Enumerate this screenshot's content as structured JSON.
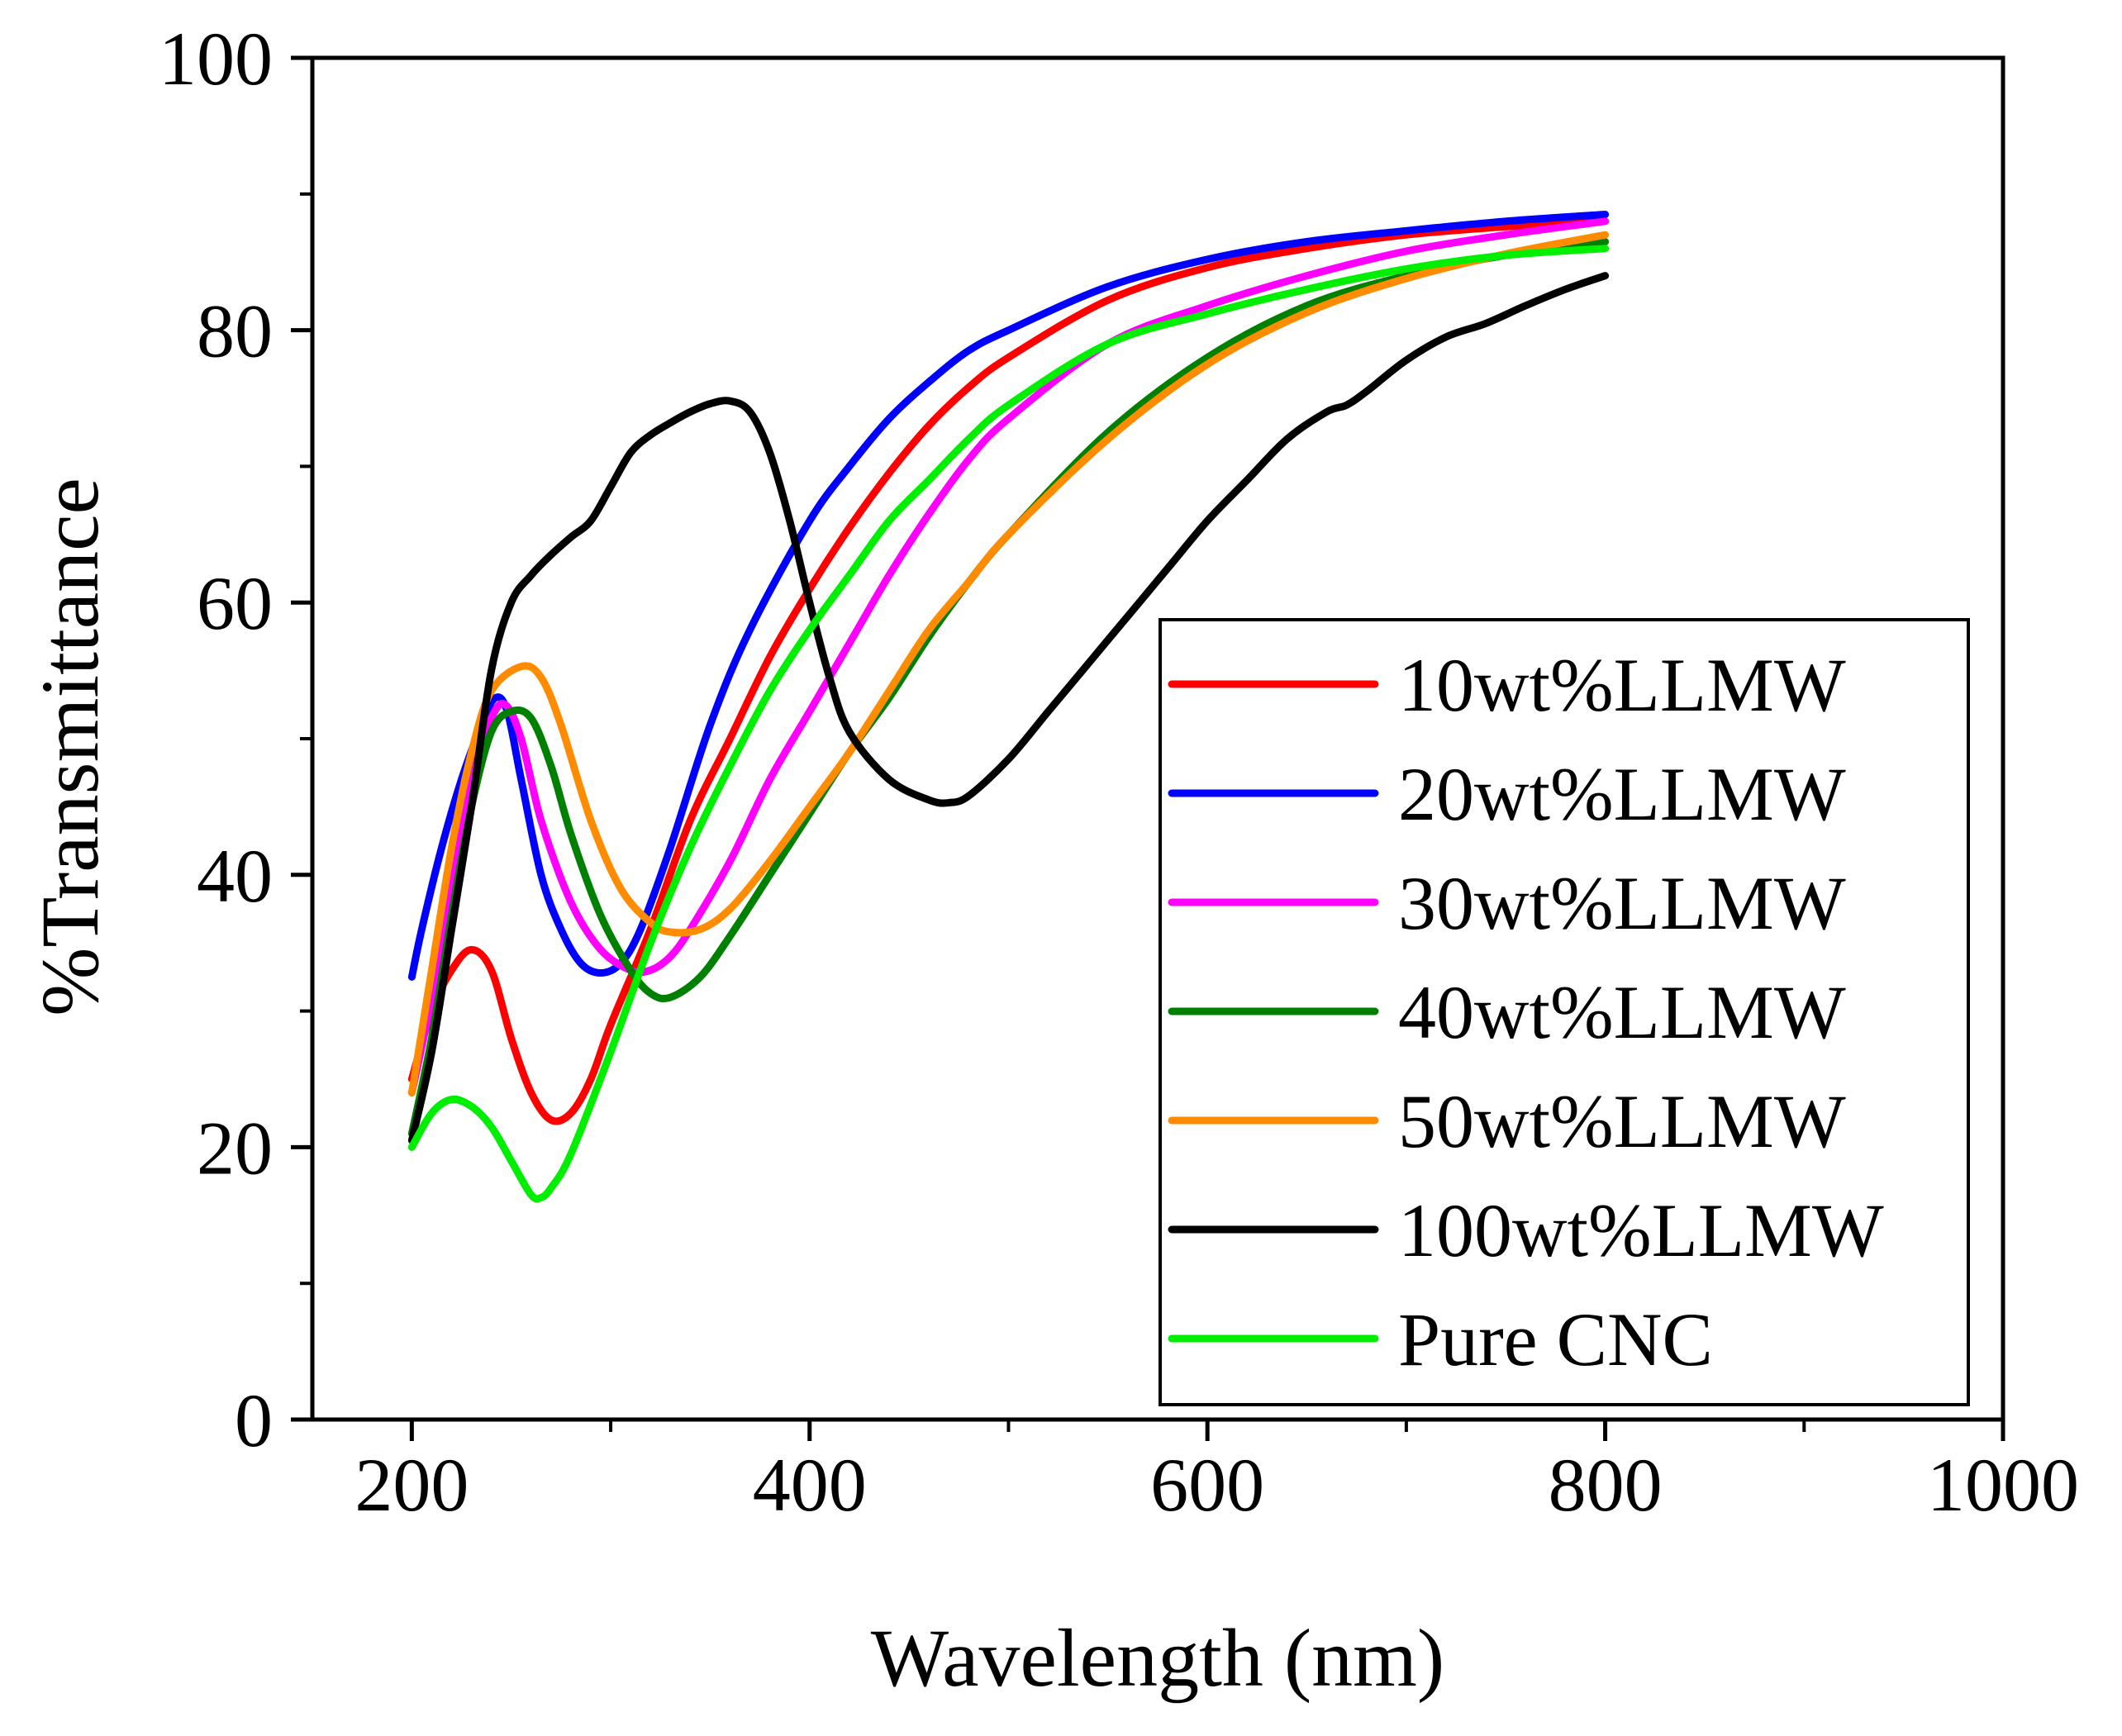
{
  "chart_data": {
    "type": "line",
    "title": "",
    "xlabel": "Wavelength (nm)",
    "ylabel": "%Transmittance",
    "xlim": [
      150,
      1000
    ],
    "ylim": [
      0,
      100
    ],
    "xticks": [
      200,
      400,
      600,
      800,
      1000
    ],
    "yticks": [
      0,
      20,
      40,
      60,
      80,
      100
    ],
    "x_minor_step": 100,
    "y_minor_step": 10,
    "grid": false,
    "legend_position": "bottom-right",
    "series": [
      {
        "name": "10wt%LLMW",
        "color": "#ff0000",
        "points": [
          [
            200,
            25
          ],
          [
            210,
            30
          ],
          [
            220,
            33
          ],
          [
            230,
            34.5
          ],
          [
            240,
            33
          ],
          [
            250,
            28
          ],
          [
            260,
            24
          ],
          [
            270,
            22
          ],
          [
            280,
            22.5
          ],
          [
            290,
            25
          ],
          [
            300,
            29
          ],
          [
            320,
            36
          ],
          [
            340,
            44
          ],
          [
            360,
            50
          ],
          [
            380,
            56
          ],
          [
            400,
            61
          ],
          [
            420,
            65.5
          ],
          [
            440,
            69.5
          ],
          [
            460,
            73
          ],
          [
            480,
            75.8
          ],
          [
            500,
            78
          ],
          [
            550,
            82.2
          ],
          [
            600,
            84.6
          ],
          [
            650,
            86
          ],
          [
            700,
            87
          ],
          [
            750,
            87.6
          ],
          [
            800,
            88
          ]
        ]
      },
      {
        "name": "20wt%LLMW",
        "color": "#0000ff",
        "points": [
          [
            200,
            32.5
          ],
          [
            205,
            36
          ],
          [
            215,
            42
          ],
          [
            225,
            47
          ],
          [
            235,
            51
          ],
          [
            242,
            53
          ],
          [
            248,
            52
          ],
          [
            255,
            47
          ],
          [
            265,
            40
          ],
          [
            275,
            36
          ],
          [
            285,
            33.5
          ],
          [
            295,
            32.8
          ],
          [
            305,
            33.5
          ],
          [
            315,
            36
          ],
          [
            330,
            42
          ],
          [
            350,
            51
          ],
          [
            370,
            58
          ],
          [
            400,
            66
          ],
          [
            420,
            70
          ],
          [
            440,
            73.5
          ],
          [
            460,
            76.2
          ],
          [
            480,
            78.5
          ],
          [
            500,
            80
          ],
          [
            550,
            83.2
          ],
          [
            600,
            85.2
          ],
          [
            650,
            86.5
          ],
          [
            700,
            87.3
          ],
          [
            750,
            88
          ],
          [
            800,
            88.5
          ]
        ]
      },
      {
        "name": "30wt%LLMW",
        "color": "#ff00ff",
        "points": [
          [
            200,
            24
          ],
          [
            210,
            31
          ],
          [
            220,
            40
          ],
          [
            230,
            47
          ],
          [
            240,
            51.5
          ],
          [
            247,
            52.5
          ],
          [
            255,
            50
          ],
          [
            265,
            44
          ],
          [
            280,
            38
          ],
          [
            295,
            34.5
          ],
          [
            310,
            33
          ],
          [
            320,
            33
          ],
          [
            330,
            34
          ],
          [
            340,
            36
          ],
          [
            360,
            41
          ],
          [
            380,
            47
          ],
          [
            400,
            52
          ],
          [
            420,
            57
          ],
          [
            440,
            62
          ],
          [
            460,
            66.5
          ],
          [
            480,
            70.5
          ],
          [
            500,
            73.5
          ],
          [
            550,
            79
          ],
          [
            600,
            81.8
          ],
          [
            650,
            84
          ],
          [
            700,
            85.8
          ],
          [
            750,
            87
          ],
          [
            800,
            88
          ]
        ]
      },
      {
        "name": "40wt%LLMW",
        "color": "#008000",
        "points": [
          [
            200,
            21
          ],
          [
            210,
            28
          ],
          [
            220,
            37
          ],
          [
            230,
            45
          ],
          [
            240,
            50.5
          ],
          [
            250,
            52
          ],
          [
            260,
            51.5
          ],
          [
            270,
            48
          ],
          [
            280,
            43
          ],
          [
            295,
            37
          ],
          [
            310,
            33
          ],
          [
            320,
            31.3
          ],
          [
            330,
            31
          ],
          [
            345,
            32.5
          ],
          [
            360,
            35.5
          ],
          [
            380,
            40
          ],
          [
            400,
            44.5
          ],
          [
            420,
            49
          ],
          [
            440,
            53
          ],
          [
            460,
            57.5
          ],
          [
            480,
            61.5
          ],
          [
            500,
            65
          ],
          [
            550,
            72.5
          ],
          [
            600,
            78
          ],
          [
            650,
            81.8
          ],
          [
            700,
            84
          ],
          [
            750,
            85.5
          ],
          [
            800,
            86.5
          ]
        ]
      },
      {
        "name": "50wt%LLMW",
        "color": "#ff8c00",
        "points": [
          [
            200,
            24
          ],
          [
            210,
            33
          ],
          [
            220,
            42
          ],
          [
            230,
            49
          ],
          [
            240,
            53.5
          ],
          [
            255,
            55.3
          ],
          [
            265,
            54.5
          ],
          [
            275,
            51
          ],
          [
            290,
            44
          ],
          [
            305,
            39
          ],
          [
            320,
            36.5
          ],
          [
            330,
            35.8
          ],
          [
            345,
            36
          ],
          [
            360,
            37.5
          ],
          [
            380,
            41
          ],
          [
            400,
            45
          ],
          [
            420,
            49
          ],
          [
            440,
            53.5
          ],
          [
            460,
            58
          ],
          [
            480,
            61.5
          ],
          [
            500,
            65
          ],
          [
            550,
            72
          ],
          [
            600,
            77.5
          ],
          [
            650,
            81.3
          ],
          [
            700,
            83.8
          ],
          [
            750,
            85.6
          ],
          [
            800,
            87
          ]
        ]
      },
      {
        "name": "100wt%LLMW",
        "color": "#000000",
        "points": [
          [
            200,
            20.5
          ],
          [
            210,
            27
          ],
          [
            220,
            36
          ],
          [
            230,
            45
          ],
          [
            240,
            55
          ],
          [
            250,
            60
          ],
          [
            260,
            62
          ],
          [
            270,
            63.5
          ],
          [
            280,
            64.8
          ],
          [
            290,
            66
          ],
          [
            300,
            68.5
          ],
          [
            310,
            71
          ],
          [
            320,
            72.3
          ],
          [
            330,
            73.2
          ],
          [
            340,
            74
          ],
          [
            350,
            74.6
          ],
          [
            360,
            74.8
          ],
          [
            370,
            74
          ],
          [
            380,
            71
          ],
          [
            390,
            66
          ],
          [
            400,
            60
          ],
          [
            410,
            54.5
          ],
          [
            420,
            50.5
          ],
          [
            440,
            47
          ],
          [
            460,
            45.5
          ],
          [
            470,
            45.3
          ],
          [
            480,
            45.8
          ],
          [
            500,
            48.5
          ],
          [
            520,
            52
          ],
          [
            540,
            55.5
          ],
          [
            560,
            59
          ],
          [
            580,
            62.5
          ],
          [
            600,
            66
          ],
          [
            620,
            69
          ],
          [
            640,
            72
          ],
          [
            660,
            74
          ],
          [
            670,
            74.5
          ],
          [
            680,
            75.5
          ],
          [
            700,
            77.8
          ],
          [
            720,
            79.5
          ],
          [
            740,
            80.5
          ],
          [
            760,
            81.8
          ],
          [
            780,
            83
          ],
          [
            800,
            84
          ]
        ]
      },
      {
        "name": "Pure CNC",
        "color": "#00ee00",
        "points": [
          [
            200,
            20
          ],
          [
            210,
            22.5
          ],
          [
            220,
            23.5
          ],
          [
            230,
            23
          ],
          [
            240,
            21.5
          ],
          [
            250,
            19
          ],
          [
            260,
            16.5
          ],
          [
            265,
            16.3
          ],
          [
            270,
            17
          ],
          [
            280,
            19.5
          ],
          [
            300,
            27
          ],
          [
            320,
            35
          ],
          [
            340,
            42
          ],
          [
            360,
            48
          ],
          [
            380,
            53.5
          ],
          [
            400,
            58
          ],
          [
            420,
            62
          ],
          [
            440,
            66
          ],
          [
            460,
            69
          ],
          [
            480,
            72
          ],
          [
            500,
            74.5
          ],
          [
            550,
            79
          ],
          [
            600,
            81.2
          ],
          [
            650,
            83
          ],
          [
            700,
            84.5
          ],
          [
            750,
            85.5
          ],
          [
            800,
            86
          ]
        ]
      }
    ]
  }
}
